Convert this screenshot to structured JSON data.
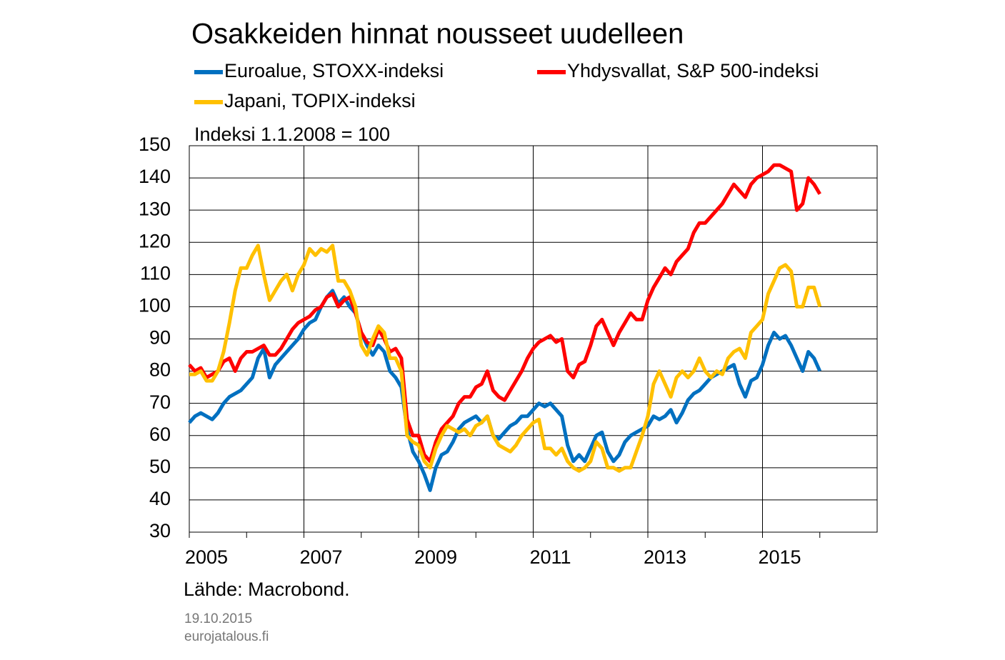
{
  "chart_data": {
    "type": "line",
    "title": "Osakkeiden hinnat nousseet uudelleen",
    "y_label": "Indeksi 1.1.2008 = 100",
    "source": "Lähde: Macrobond.",
    "date": "19.10.2015",
    "site": "eurojatalous.fi",
    "xlim": [
      2005,
      2017
    ],
    "xticks": [
      2005,
      2007,
      2009,
      2011,
      2013,
      2015
    ],
    "x_minor_ticks": [
      2006,
      2008,
      2010,
      2012,
      2014,
      2016
    ],
    "ylim": [
      30,
      150
    ],
    "yticks": [
      30,
      40,
      50,
      60,
      70,
      80,
      90,
      100,
      110,
      120,
      130,
      140,
      150
    ],
    "grid": true,
    "x": [
      2005.0,
      2005.1,
      2005.2,
      2005.3,
      2005.4,
      2005.5,
      2005.6,
      2005.7,
      2005.8,
      2005.9,
      2006.0,
      2006.1,
      2006.2,
      2006.3,
      2006.4,
      2006.5,
      2006.6,
      2006.7,
      2006.8,
      2006.9,
      2007.0,
      2007.1,
      2007.2,
      2007.3,
      2007.4,
      2007.5,
      2007.6,
      2007.7,
      2007.8,
      2007.9,
      2008.0,
      2008.1,
      2008.2,
      2008.3,
      2008.4,
      2008.5,
      2008.6,
      2008.7,
      2008.8,
      2008.9,
      2009.0,
      2009.1,
      2009.2,
      2009.3,
      2009.4,
      2009.5,
      2009.6,
      2009.7,
      2009.8,
      2009.9,
      2010.0,
      2010.1,
      2010.2,
      2010.3,
      2010.4,
      2010.5,
      2010.6,
      2010.7,
      2010.8,
      2010.9,
      2011.0,
      2011.1,
      2011.2,
      2011.3,
      2011.4,
      2011.5,
      2011.6,
      2011.7,
      2011.8,
      2011.9,
      2012.0,
      2012.1,
      2012.2,
      2012.3,
      2012.4,
      2012.5,
      2012.6,
      2012.7,
      2012.8,
      2012.9,
      2013.0,
      2013.1,
      2013.2,
      2013.3,
      2013.4,
      2013.5,
      2013.6,
      2013.7,
      2013.8,
      2013.9,
      2014.0,
      2014.1,
      2014.2,
      2014.3,
      2014.4,
      2014.5,
      2014.6,
      2014.7,
      2014.8,
      2014.9,
      2015.0,
      2015.1,
      2015.2,
      2015.3,
      2015.4,
      2015.5,
      2015.6,
      2015.7,
      2015.8,
      2015.9,
      2016.0
    ],
    "series": [
      {
        "name": "Euroalue, STOXX-indeksi",
        "color": "#0070c0",
        "values": [
          64,
          66,
          67,
          66,
          65,
          67,
          70,
          72,
          73,
          74,
          76,
          78,
          84,
          87,
          78,
          82,
          84,
          86,
          88,
          90,
          93,
          95,
          96,
          100,
          103,
          105,
          101,
          103,
          100,
          98,
          92,
          88,
          85,
          88,
          86,
          80,
          78,
          75,
          62,
          55,
          52,
          48,
          43,
          50,
          54,
          55,
          58,
          62,
          64,
          65,
          66,
          64,
          66,
          60,
          59,
          61,
          63,
          64,
          66,
          66,
          68,
          70,
          69,
          70,
          68,
          66,
          57,
          52,
          54,
          52,
          56,
          60,
          61,
          55,
          52,
          54,
          58,
          60,
          61,
          62,
          63,
          66,
          65,
          66,
          68,
          64,
          67,
          71,
          73,
          74,
          76,
          78,
          79,
          80,
          81,
          82,
          76,
          72,
          77,
          78,
          82,
          88,
          92,
          90,
          91,
          88,
          84,
          80,
          86,
          84,
          80
        ]
      },
      {
        "name": "Yhdysvallat, S&P 500-indeksi",
        "color": "#ff0000",
        "values": [
          82,
          80,
          81,
          78,
          79,
          80,
          83,
          84,
          80,
          84,
          86,
          86,
          87,
          88,
          85,
          85,
          87,
          90,
          93,
          95,
          96,
          97,
          99,
          100,
          103,
          104,
          100,
          102,
          103,
          98,
          92,
          89,
          88,
          93,
          90,
          86,
          87,
          84,
          65,
          60,
          60,
          54,
          52,
          58,
          62,
          64,
          66,
          70,
          72,
          72,
          75,
          76,
          80,
          74,
          72,
          71,
          74,
          77,
          80,
          84,
          87,
          89,
          90,
          91,
          89,
          90,
          80,
          78,
          82,
          83,
          88,
          94,
          96,
          92,
          88,
          92,
          95,
          98,
          96,
          96,
          102,
          106,
          109,
          112,
          110,
          114,
          116,
          118,
          123,
          126,
          126,
          128,
          130,
          132,
          135,
          138,
          136,
          134,
          138,
          140,
          141,
          142,
          144,
          144,
          143,
          142,
          130,
          132,
          140,
          138,
          135
        ]
      },
      {
        "name": "Japani, TOPIX-indeksi",
        "color": "#ffc000",
        "values": [
          79,
          79,
          80,
          77,
          77,
          80,
          86,
          95,
          105,
          112,
          112,
          116,
          119,
          110,
          102,
          105,
          108,
          110,
          105,
          110,
          113,
          118,
          116,
          118,
          117,
          119,
          108,
          108,
          105,
          100,
          88,
          85,
          90,
          94,
          92,
          84,
          84,
          80,
          60,
          58,
          57,
          52,
          50,
          56,
          60,
          63,
          62,
          61,
          62,
          60,
          63,
          64,
          66,
          60,
          57,
          56,
          55,
          57,
          60,
          62,
          64,
          65,
          56,
          56,
          54,
          56,
          52,
          50,
          49,
          50,
          52,
          58,
          56,
          50,
          50,
          49,
          50,
          50,
          55,
          60,
          66,
          76,
          80,
          76,
          72,
          78,
          80,
          78,
          80,
          84,
          80,
          78,
          80,
          79,
          84,
          86,
          87,
          84,
          92,
          94,
          96,
          104,
          108,
          112,
          113,
          111,
          100,
          100,
          106,
          106,
          100
        ]
      }
    ]
  }
}
